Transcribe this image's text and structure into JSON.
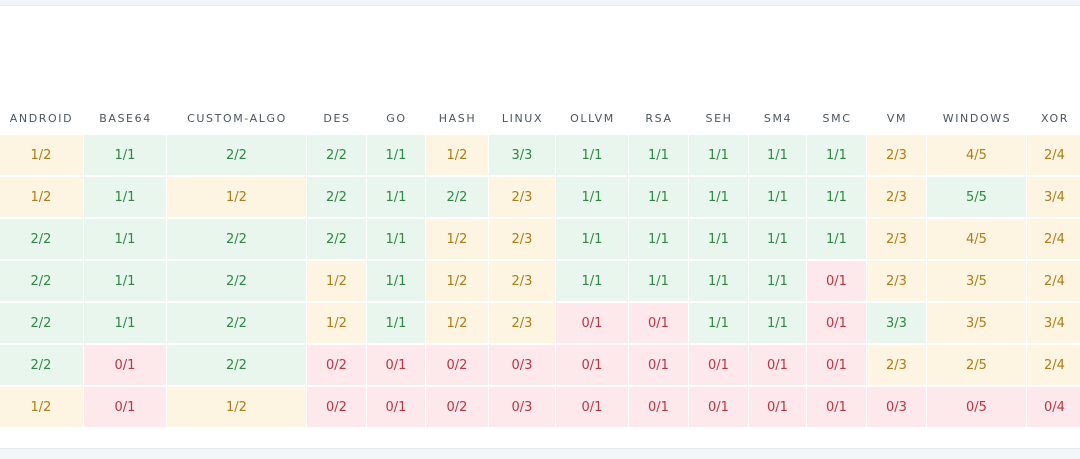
{
  "table": {
    "headers": [
      "ANDROID",
      "BASE64",
      "CUSTOM-ALGO",
      "DES",
      "GO",
      "HASH",
      "LINUX",
      "OLLVM",
      "RSA",
      "SEH",
      "SM4",
      "SMC",
      "VM",
      "WINDOWS",
      "XOR"
    ],
    "rows": [
      [
        "1/2",
        "1/1",
        "2/2",
        "2/2",
        "1/1",
        "1/2",
        "3/3",
        "1/1",
        "1/1",
        "1/1",
        "1/1",
        "1/1",
        "2/3",
        "4/5",
        "2/4"
      ],
      [
        "1/2",
        "1/1",
        "1/2",
        "2/2",
        "1/1",
        "2/2",
        "2/3",
        "1/1",
        "1/1",
        "1/1",
        "1/1",
        "1/1",
        "2/3",
        "5/5",
        "3/4"
      ],
      [
        "2/2",
        "1/1",
        "2/2",
        "2/2",
        "1/1",
        "1/2",
        "2/3",
        "1/1",
        "1/1",
        "1/1",
        "1/1",
        "1/1",
        "2/3",
        "4/5",
        "2/4"
      ],
      [
        "2/2",
        "1/1",
        "2/2",
        "1/2",
        "1/1",
        "1/2",
        "2/3",
        "1/1",
        "1/1",
        "1/1",
        "1/1",
        "0/1",
        "2/3",
        "3/5",
        "2/4"
      ],
      [
        "2/2",
        "1/1",
        "2/2",
        "1/2",
        "1/1",
        "1/2",
        "2/3",
        "0/1",
        "0/1",
        "1/1",
        "1/1",
        "0/1",
        "3/3",
        "3/5",
        "3/4"
      ],
      [
        "2/2",
        "0/1",
        "2/2",
        "0/2",
        "0/1",
        "0/2",
        "0/3",
        "0/1",
        "0/1",
        "0/1",
        "0/1",
        "0/1",
        "2/3",
        "2/5",
        "2/4"
      ],
      [
        "1/2",
        "0/1",
        "1/2",
        "0/2",
        "0/1",
        "0/2",
        "0/3",
        "0/1",
        "0/1",
        "0/1",
        "0/1",
        "0/1",
        "0/3",
        "0/5",
        "0/4"
      ]
    ]
  }
}
